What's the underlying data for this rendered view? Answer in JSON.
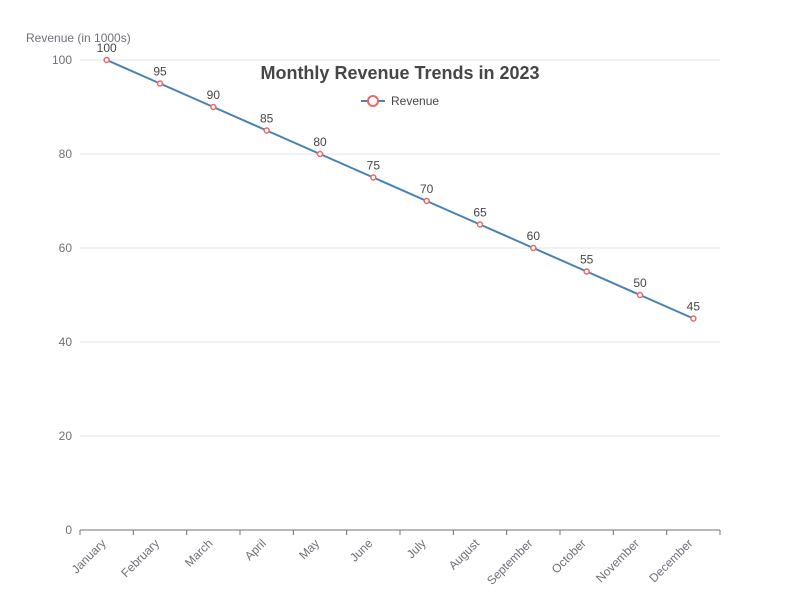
{
  "chart_data": {
    "type": "line",
    "title": "Monthly Revenue Trends in 2023",
    "xlabel": "",
    "ylabel": "Revenue (in 1000s)",
    "categories": [
      "January",
      "February",
      "March",
      "April",
      "May",
      "June",
      "July",
      "August",
      "September",
      "October",
      "November",
      "December"
    ],
    "series": [
      {
        "name": "Revenue",
        "values": [
          100,
          95,
          90,
          85,
          80,
          75,
          70,
          65,
          60,
          55,
          50,
          45
        ],
        "line_color": "#4682b4",
        "marker_color": "#ee6666"
      }
    ],
    "ylim": [
      0,
      100
    ],
    "yticks": [
      0,
      20,
      40,
      60,
      80,
      100
    ],
    "grid": true,
    "legend_position": "top-center",
    "colors": {
      "grid": "#e0e6f1",
      "axis": "#6e7079",
      "text": "#464646"
    }
  }
}
